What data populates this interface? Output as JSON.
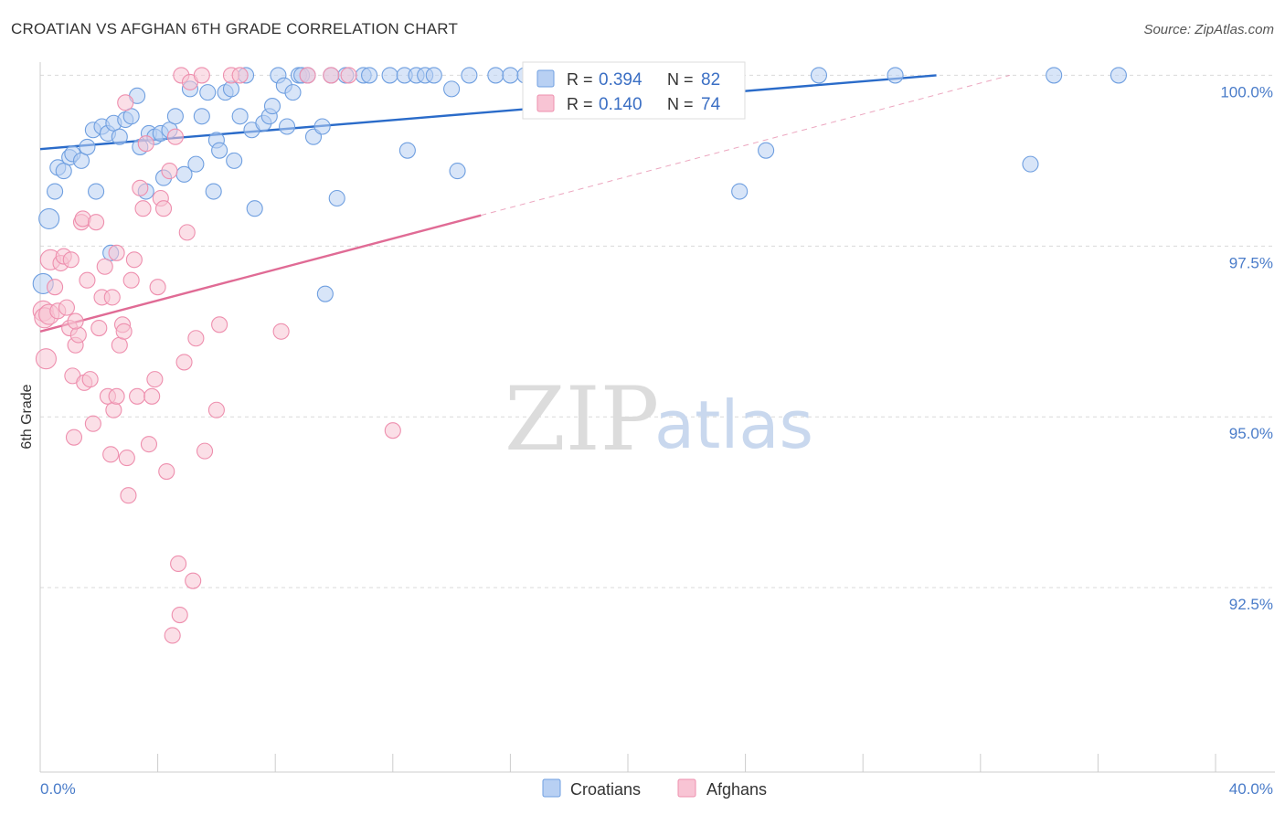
{
  "chart_data": {
    "type": "scatter",
    "title": "CROATIAN VS AFGHAN 6TH GRADE CORRELATION CHART",
    "source": "Source: ZipAtlas.com",
    "xlabel": "",
    "ylabel": "6th Grade",
    "xlim": [
      0.0,
      40.0
    ],
    "ylim": [
      89.8,
      100.3
    ],
    "x_tick_labels": [
      "0.0%",
      "40.0%"
    ],
    "y_ticks": [
      {
        "value": 100.0,
        "label": "100.0%"
      },
      {
        "value": 97.5,
        "label": "97.5%"
      },
      {
        "value": 95.0,
        "label": "95.0%"
      },
      {
        "value": 92.5,
        "label": "92.5%"
      }
    ],
    "legend_box": [
      {
        "r_label": "R =",
        "r_value": "0.394",
        "n_label": "N =",
        "n_value": "82"
      },
      {
        "r_label": "R =",
        "r_value": "0.140",
        "n_label": "N =",
        "n_value": "74"
      }
    ],
    "series": [
      {
        "name": "Croatians",
        "color": "#6f9fe0",
        "fill": "#b8d0f3",
        "line_color": "#2a6bc9",
        "trend": {
          "x": [
            0.0,
            30.5
          ],
          "y": [
            98.92,
            100.0
          ]
        },
        "points": [
          [
            0.3,
            97.9
          ],
          [
            0.5,
            98.3
          ],
          [
            0.6,
            98.65
          ],
          [
            0.8,
            98.6
          ],
          [
            1.0,
            98.8
          ],
          [
            1.1,
            98.85
          ],
          [
            1.4,
            98.75
          ],
          [
            1.6,
            98.95
          ],
          [
            1.8,
            99.2
          ],
          [
            1.9,
            98.3
          ],
          [
            2.1,
            99.25
          ],
          [
            2.3,
            99.15
          ],
          [
            2.4,
            97.4
          ],
          [
            2.5,
            99.3
          ],
          [
            2.7,
            99.1
          ],
          [
            2.9,
            99.35
          ],
          [
            3.1,
            99.4
          ],
          [
            3.3,
            99.7
          ],
          [
            3.4,
            98.95
          ],
          [
            3.6,
            98.3
          ],
          [
            3.7,
            99.15
          ],
          [
            3.9,
            99.1
          ],
          [
            4.1,
            99.15
          ],
          [
            4.2,
            98.5
          ],
          [
            4.4,
            99.2
          ],
          [
            4.6,
            99.4
          ],
          [
            4.9,
            98.55
          ],
          [
            5.1,
            99.8
          ],
          [
            5.3,
            98.7
          ],
          [
            5.5,
            99.4
          ],
          [
            5.7,
            99.75
          ],
          [
            5.9,
            98.3
          ],
          [
            6.0,
            99.05
          ],
          [
            6.1,
            98.9
          ],
          [
            6.3,
            99.75
          ],
          [
            6.5,
            99.8
          ],
          [
            6.6,
            98.75
          ],
          [
            6.8,
            99.4
          ],
          [
            7.0,
            100.0
          ],
          [
            7.2,
            99.2
          ],
          [
            7.3,
            98.05
          ],
          [
            7.6,
            99.3
          ],
          [
            7.8,
            99.4
          ],
          [
            7.9,
            99.55
          ],
          [
            8.1,
            100.0
          ],
          [
            8.3,
            99.85
          ],
          [
            8.4,
            99.25
          ],
          [
            8.6,
            99.75
          ],
          [
            8.8,
            100.0
          ],
          [
            8.9,
            100.0
          ],
          [
            9.1,
            100.0
          ],
          [
            9.3,
            99.1
          ],
          [
            9.6,
            99.25
          ],
          [
            9.7,
            96.8
          ],
          [
            9.9,
            100.0
          ],
          [
            10.1,
            98.2
          ],
          [
            10.4,
            100.0
          ],
          [
            11.0,
            100.0
          ],
          [
            11.2,
            100.0
          ],
          [
            11.9,
            100.0
          ],
          [
            12.4,
            100.0
          ],
          [
            12.5,
            98.9
          ],
          [
            12.8,
            100.0
          ],
          [
            13.1,
            100.0
          ],
          [
            13.4,
            100.0
          ],
          [
            14.0,
            99.8
          ],
          [
            14.2,
            98.6
          ],
          [
            14.6,
            100.0
          ],
          [
            15.5,
            100.0
          ],
          [
            16.0,
            100.0
          ],
          [
            16.5,
            100.0
          ],
          [
            16.8,
            100.0
          ],
          [
            18.0,
            100.0
          ],
          [
            19.3,
            100.0
          ],
          [
            21.5,
            100.0
          ],
          [
            23.0,
            100.0
          ],
          [
            23.8,
            98.3
          ],
          [
            24.7,
            98.9
          ],
          [
            26.5,
            100.0
          ],
          [
            29.1,
            100.0
          ],
          [
            33.7,
            98.7
          ],
          [
            34.5,
            100.0
          ],
          [
            36.7,
            100.0
          ],
          [
            0.1,
            96.95
          ]
        ]
      },
      {
        "name": "Afghans",
        "color": "#ee8fae",
        "fill": "#f8c4d4",
        "line_color": "#e06b95",
        "trend": {
          "x": [
            0.0,
            15.0
          ],
          "y": [
            96.25,
            97.95
          ]
        },
        "trend_dashed": {
          "x": [
            15.0,
            33.0
          ],
          "y": [
            97.95,
            100.0
          ]
        },
        "points": [
          [
            0.1,
            96.55
          ],
          [
            0.15,
            96.45
          ],
          [
            0.2,
            95.85
          ],
          [
            0.3,
            96.5
          ],
          [
            0.35,
            97.3
          ],
          [
            0.5,
            96.9
          ],
          [
            0.6,
            96.55
          ],
          [
            0.7,
            97.25
          ],
          [
            0.8,
            97.35
          ],
          [
            0.9,
            96.6
          ],
          [
            1.0,
            96.3
          ],
          [
            1.05,
            97.3
          ],
          [
            1.1,
            95.6
          ],
          [
            1.15,
            94.7
          ],
          [
            1.2,
            96.05
          ],
          [
            1.3,
            96.2
          ],
          [
            1.4,
            97.85
          ],
          [
            1.45,
            97.9
          ],
          [
            1.5,
            95.5
          ],
          [
            1.6,
            97.0
          ],
          [
            1.7,
            95.55
          ],
          [
            1.8,
            94.9
          ],
          [
            1.9,
            97.85
          ],
          [
            2.0,
            96.3
          ],
          [
            2.1,
            96.75
          ],
          [
            2.2,
            97.2
          ],
          [
            2.3,
            95.3
          ],
          [
            2.4,
            94.45
          ],
          [
            2.45,
            96.75
          ],
          [
            2.5,
            95.1
          ],
          [
            2.6,
            95.3
          ],
          [
            2.7,
            96.05
          ],
          [
            2.8,
            96.35
          ],
          [
            2.85,
            96.25
          ],
          [
            2.9,
            99.6
          ],
          [
            2.95,
            94.4
          ],
          [
            3.0,
            93.85
          ],
          [
            3.1,
            97.0
          ],
          [
            3.2,
            97.3
          ],
          [
            3.3,
            95.3
          ],
          [
            3.4,
            98.35
          ],
          [
            3.5,
            98.05
          ],
          [
            3.6,
            99.0
          ],
          [
            3.7,
            94.6
          ],
          [
            3.8,
            95.3
          ],
          [
            3.9,
            95.55
          ],
          [
            4.0,
            96.9
          ],
          [
            4.1,
            98.2
          ],
          [
            4.2,
            98.05
          ],
          [
            4.3,
            94.2
          ],
          [
            4.4,
            98.6
          ],
          [
            4.5,
            91.8
          ],
          [
            4.6,
            99.1
          ],
          [
            4.7,
            92.85
          ],
          [
            4.75,
            92.1
          ],
          [
            4.8,
            100.0
          ],
          [
            4.9,
            95.8
          ],
          [
            5.0,
            97.7
          ],
          [
            5.1,
            99.9
          ],
          [
            5.2,
            92.6
          ],
          [
            5.3,
            96.15
          ],
          [
            5.5,
            100.0
          ],
          [
            5.6,
            94.5
          ],
          [
            6.0,
            95.1
          ],
          [
            6.1,
            96.35
          ],
          [
            6.5,
            100.0
          ],
          [
            6.8,
            100.0
          ],
          [
            8.2,
            96.25
          ],
          [
            9.1,
            100.0
          ],
          [
            9.9,
            100.0
          ],
          [
            10.5,
            100.0
          ],
          [
            12.0,
            94.8
          ],
          [
            2.6,
            97.4
          ],
          [
            1.2,
            96.4
          ]
        ]
      }
    ],
    "legend": [
      "Croatians",
      "Afghans"
    ],
    "watermark": {
      "zip": "ZIP",
      "atlas": "atlas"
    }
  }
}
